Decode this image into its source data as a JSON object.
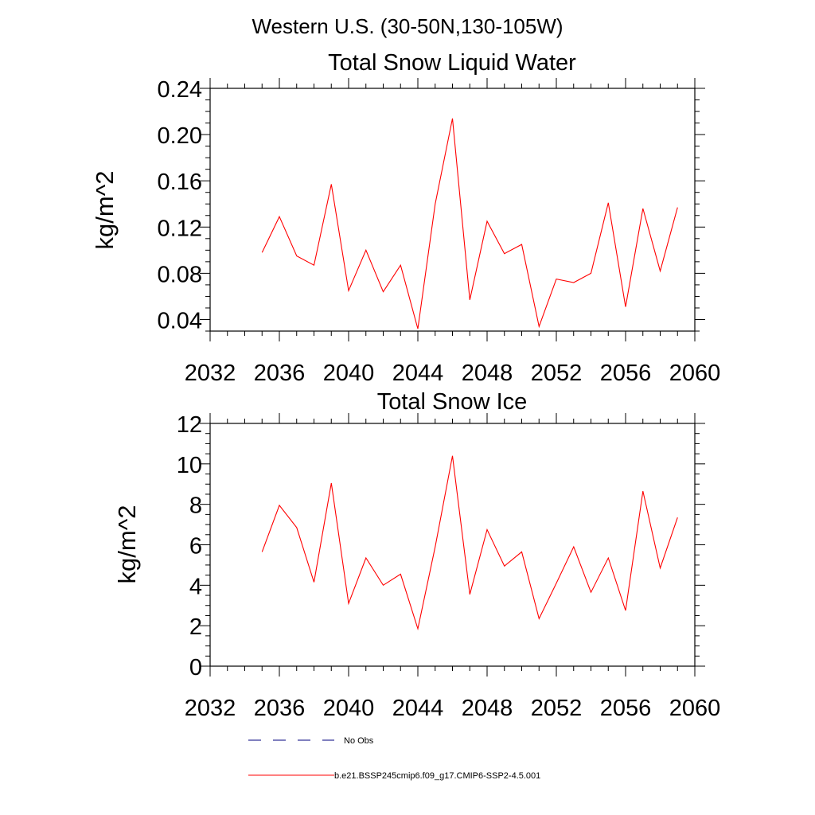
{
  "figure": {
    "title": "Western U.S. (30-50N,130-105W)"
  },
  "legend": {
    "items": [
      {
        "label": "No Obs",
        "color": "#00007f",
        "dash": "dashed"
      },
      {
        "label": "b.e21.BSSP245cmip6.f09_g17.CMIP6-SSP2-4.5.001",
        "color": "#ff0000",
        "dash": "solid"
      }
    ],
    "position": "bottom"
  },
  "chart_data": [
    {
      "type": "line",
      "title": "Total Snow Liquid Water",
      "ylabel": "kg/m^2",
      "xlim": [
        2032,
        2060
      ],
      "ylim": [
        0.03,
        0.24
      ],
      "xticks": [
        2032,
        2036,
        2040,
        2044,
        2048,
        2052,
        2056,
        2060
      ],
      "yticks": [
        0.04,
        0.08,
        0.12,
        0.16,
        0.2,
        0.24
      ],
      "ytick_labels": [
        "0.04",
        "0.08",
        "0.12",
        "0.16",
        "0.20",
        "0.24"
      ],
      "grid": false,
      "series": [
        {
          "name": "b.e21.BSSP245cmip6.f09_g17.CMIP6-SSP2-4.5.001",
          "color": "#ff0000",
          "x": [
            2035,
            2036,
            2037,
            2038,
            2039,
            2040,
            2041,
            2042,
            2043,
            2044,
            2045,
            2046,
            2047,
            2048,
            2049,
            2050,
            2051,
            2052,
            2053,
            2054,
            2055,
            2056,
            2057,
            2058,
            2059
          ],
          "y": [
            0.098,
            0.129,
            0.095,
            0.087,
            0.157,
            0.065,
            0.1,
            0.064,
            0.087,
            0.032,
            0.14,
            0.214,
            0.057,
            0.125,
            0.097,
            0.105,
            0.034,
            0.075,
            0.072,
            0.08,
            0.141,
            0.051,
            0.136,
            0.082,
            0.137
          ]
        }
      ]
    },
    {
      "type": "line",
      "title": "Total Snow Ice",
      "ylabel": "kg/m^2",
      "xlim": [
        2032,
        2060
      ],
      "ylim": [
        0,
        12
      ],
      "xticks": [
        2032,
        2036,
        2040,
        2044,
        2048,
        2052,
        2056,
        2060
      ],
      "yticks": [
        0,
        2,
        4,
        6,
        8,
        10,
        12
      ],
      "ytick_labels": [
        "0",
        "2",
        "4",
        "6",
        "8",
        "10",
        "12"
      ],
      "grid": false,
      "series": [
        {
          "name": "b.e21.BSSP245cmip6.f09_g17.CMIP6-SSP2-4.5.001",
          "color": "#ff0000",
          "x": [
            2035,
            2036,
            2037,
            2038,
            2039,
            2040,
            2041,
            2042,
            2043,
            2044,
            2045,
            2046,
            2047,
            2048,
            2049,
            2050,
            2051,
            2052,
            2053,
            2054,
            2055,
            2056,
            2057,
            2058,
            2059
          ],
          "y": [
            5.65,
            7.95,
            6.85,
            4.15,
            9.05,
            3.1,
            5.35,
            4.0,
            4.55,
            1.85,
            5.9,
            10.4,
            3.55,
            6.75,
            4.95,
            5.65,
            2.35,
            4.1,
            5.9,
            3.65,
            5.35,
            2.75,
            8.65,
            4.85,
            7.35
          ]
        }
      ]
    }
  ]
}
